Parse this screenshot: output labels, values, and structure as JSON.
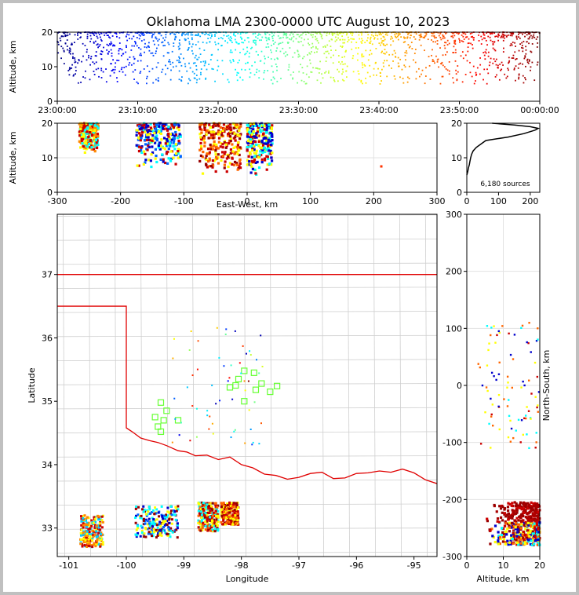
{
  "title": "Oklahoma LMA 2300-0000 UTC August 10, 2023",
  "chart_data": [
    {
      "name": "altitude-vs-time",
      "type": "scatter",
      "xlabel": "",
      "ylabel": "Altitude, km",
      "ylim": [
        0,
        20
      ],
      "yticks": [
        "0",
        "10",
        "20"
      ],
      "xticks": [
        "23:00:00",
        "23:10:00",
        "23:20:00",
        "23:30:00",
        "23:40:00",
        "23:50:00",
        "00:00:00"
      ],
      "color_by": "time",
      "colormap": "jet",
      "clusters": [
        {
          "t_range": [
            "23:00:00",
            "00:00:00"
          ],
          "alt_range": [
            5,
            20
          ],
          "note_points": 1600
        }
      ]
    },
    {
      "name": "altitude-vs-eastwest",
      "type": "scatter",
      "xlabel": "East-West, km",
      "ylabel": "Altitude, km",
      "xlim": [
        -300,
        300
      ],
      "ylim": [
        0,
        20
      ],
      "xticks": [
        "-300",
        "-200",
        "-100",
        "0",
        "100",
        "200",
        "300"
      ],
      "yticks": [
        "0",
        "10",
        "20"
      ],
      "grid": true,
      "clusters": [
        {
          "x": [
            -265,
            -235
          ],
          "alt": [
            11,
            20
          ],
          "colors": [
            "#cc0000",
            "#ff8800",
            "#ffff00",
            "#00ffff"
          ]
        },
        {
          "x": [
            -175,
            -105
          ],
          "alt": [
            7,
            20
          ],
          "colors": [
            "#0000cc",
            "#0066ff",
            "#00ffff",
            "#cc0000",
            "#ffff00"
          ]
        },
        {
          "x": [
            -75,
            -10
          ],
          "alt": [
            5,
            20
          ],
          "colors": [
            "#990000",
            "#cc0000",
            "#ff6600",
            "#ffff00"
          ]
        },
        {
          "x": [
            0,
            40
          ],
          "alt": [
            4,
            20
          ],
          "colors": [
            "#0000cc",
            "#00ffff",
            "#ffff00",
            "#cc0000"
          ]
        }
      ]
    },
    {
      "name": "altitude-histogram",
      "type": "line",
      "xlim": [
        0,
        230
      ],
      "ylim": [
        0,
        20
      ],
      "xticks": [
        "0",
        "100",
        "200"
      ],
      "yticks": [
        "0",
        "10",
        "20"
      ],
      "annotation": "6,180 sources",
      "profile": [
        [
          0,
          5
        ],
        [
          3,
          6
        ],
        [
          5,
          7
        ],
        [
          8,
          8
        ],
        [
          10,
          9
        ],
        [
          12,
          10
        ],
        [
          15,
          11
        ],
        [
          20,
          12
        ],
        [
          30,
          13
        ],
        [
          45,
          14
        ],
        [
          60,
          15
        ],
        [
          130,
          16
        ],
        [
          180,
          17
        ],
        [
          215,
          18
        ],
        [
          225,
          18.5
        ],
        [
          200,
          19
        ],
        [
          150,
          19.5
        ],
        [
          80,
          20
        ]
      ]
    },
    {
      "name": "plan-view-map",
      "type": "scatter",
      "xlabel": "Longitude",
      "ylabel": "Latitude",
      "xlim": [
        -101.2,
        -94.6
      ],
      "ylim": [
        32.55,
        37.95
      ],
      "xticks": [
        "-101",
        "-100",
        "-99",
        "-98",
        "-97",
        "-96",
        "-95"
      ],
      "yticks": [
        "33",
        "34",
        "35",
        "36",
        "37"
      ],
      "stations": [
        [
          -97.95,
          35.48
        ],
        [
          -97.78,
          35.45
        ],
        [
          -97.65,
          35.28
        ],
        [
          -97.5,
          35.15
        ],
        [
          -97.38,
          35.24
        ],
        [
          -98.05,
          35.35
        ],
        [
          -98.1,
          35.25
        ],
        [
          -97.95,
          35.0
        ],
        [
          -97.75,
          35.18
        ],
        [
          -98.2,
          35.22
        ],
        [
          -99.4,
          34.98
        ],
        [
          -99.3,
          34.85
        ],
        [
          -99.5,
          34.75
        ],
        [
          -99.35,
          34.7
        ],
        [
          -99.1,
          34.7
        ],
        [
          -99.45,
          34.6
        ],
        [
          -99.4,
          34.52
        ]
      ],
      "clusters": [
        {
          "lon": [
            -100.8,
            -100.4
          ],
          "lat": [
            32.7,
            33.2
          ],
          "colors": [
            "#cc0000",
            "#ff8800",
            "#ffff00",
            "#00ccff"
          ]
        },
        {
          "lon": [
            -99.85,
            -99.1
          ],
          "lat": [
            32.85,
            33.35
          ],
          "colors": [
            "#0000cc",
            "#0066ff",
            "#00ffff",
            "#ffff00",
            "#990000"
          ]
        },
        {
          "lon": [
            -98.75,
            -98.4
          ],
          "lat": [
            32.95,
            33.4
          ],
          "colors": [
            "#990000",
            "#cc0000",
            "#ff6600",
            "#ffff00",
            "#00ffff"
          ]
        },
        {
          "lon": [
            -98.35,
            -98.05
          ],
          "lat": [
            33.05,
            33.4
          ],
          "colors": [
            "#990000",
            "#cc0000",
            "#ff6600",
            "#ffff00"
          ]
        }
      ]
    },
    {
      "name": "northsouth-vs-altitude",
      "type": "scatter",
      "xlabel": "Altitude, km",
      "ylabel": "North-South, km",
      "xlim": [
        0,
        20
      ],
      "ylim": [
        -300,
        300
      ],
      "xticks": [
        "0",
        "10",
        "20"
      ],
      "yticks": [
        "-300",
        "-200",
        "-100",
        "0",
        "100",
        "200",
        "300"
      ],
      "grid": true,
      "clusters": [
        {
          "alt": [
            5,
            20
          ],
          "ns": [
            -280,
            -205
          ],
          "colors": [
            "#990000",
            "#cc0000",
            "#ff6600",
            "#ffff00",
            "#00ffff",
            "#0000cc"
          ]
        },
        {
          "alt": [
            3,
            20
          ],
          "ns": [
            -110,
            110
          ],
          "colors": [
            "#0000cc",
            "#00ffff",
            "#ffff00",
            "#cc0000",
            "#ff6600"
          ]
        }
      ]
    }
  ]
}
